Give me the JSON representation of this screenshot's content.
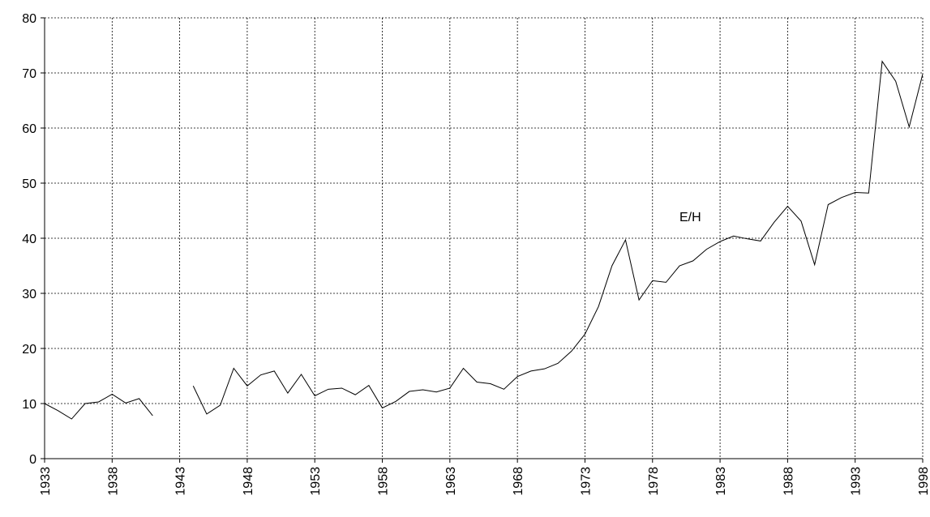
{
  "chart_data": {
    "type": "line",
    "annotation": "E/H",
    "x": [
      1933,
      1934,
      1935,
      1936,
      1937,
      1938,
      1939,
      1940,
      1941,
      1942,
      1943,
      1944,
      1945,
      1946,
      1947,
      1948,
      1949,
      1950,
      1951,
      1952,
      1953,
      1954,
      1955,
      1956,
      1957,
      1958,
      1959,
      1960,
      1961,
      1962,
      1963,
      1964,
      1965,
      1966,
      1967,
      1968,
      1969,
      1970,
      1971,
      1972,
      1973,
      1974,
      1975,
      1976,
      1977,
      1978,
      1979,
      1980,
      1981,
      1982,
      1983,
      1984,
      1985,
      1986,
      1987,
      1988,
      1989,
      1990,
      1991,
      1992,
      1993,
      1994,
      1995,
      1996,
      1997,
      1998
    ],
    "series": [
      {
        "name": "E/H",
        "color": "#000000",
        "values": [
          10,
          8.7,
          7.2,
          10,
          10.3,
          11.7,
          10.1,
          10.9,
          7.8,
          null,
          null,
          13.2,
          8.1,
          9.7,
          16.4,
          13.2,
          15.2,
          15.9,
          11.9,
          15.3,
          11.4,
          12.6,
          12.8,
          11.6,
          13.3,
          9.2,
          10.4,
          12.2,
          12.5,
          12.1,
          12.8,
          16.4,
          13.9,
          13.6,
          12.6,
          14.9,
          15.9,
          16.3,
          17.3,
          19.5,
          22.6,
          27.6,
          35,
          39.7,
          28.8,
          32.3,
          32,
          35,
          35.9,
          38,
          39.4,
          40.4,
          39.9,
          39.5,
          42.9,
          45.8,
          43.1,
          35.2,
          46.1,
          47.4,
          48.3,
          48.2,
          72.1,
          68.5,
          60.2,
          69.8
        ]
      }
    ],
    "xlim": [
      1933,
      1998
    ],
    "xticks": [
      1933,
      1938,
      1943,
      1948,
      1953,
      1958,
      1963,
      1968,
      1973,
      1978,
      1983,
      1988,
      1993,
      1998
    ],
    "ylim": [
      0,
      80
    ],
    "yticks": [
      0,
      10,
      20,
      30,
      40,
      50,
      60,
      70,
      80
    ],
    "grid": true
  }
}
